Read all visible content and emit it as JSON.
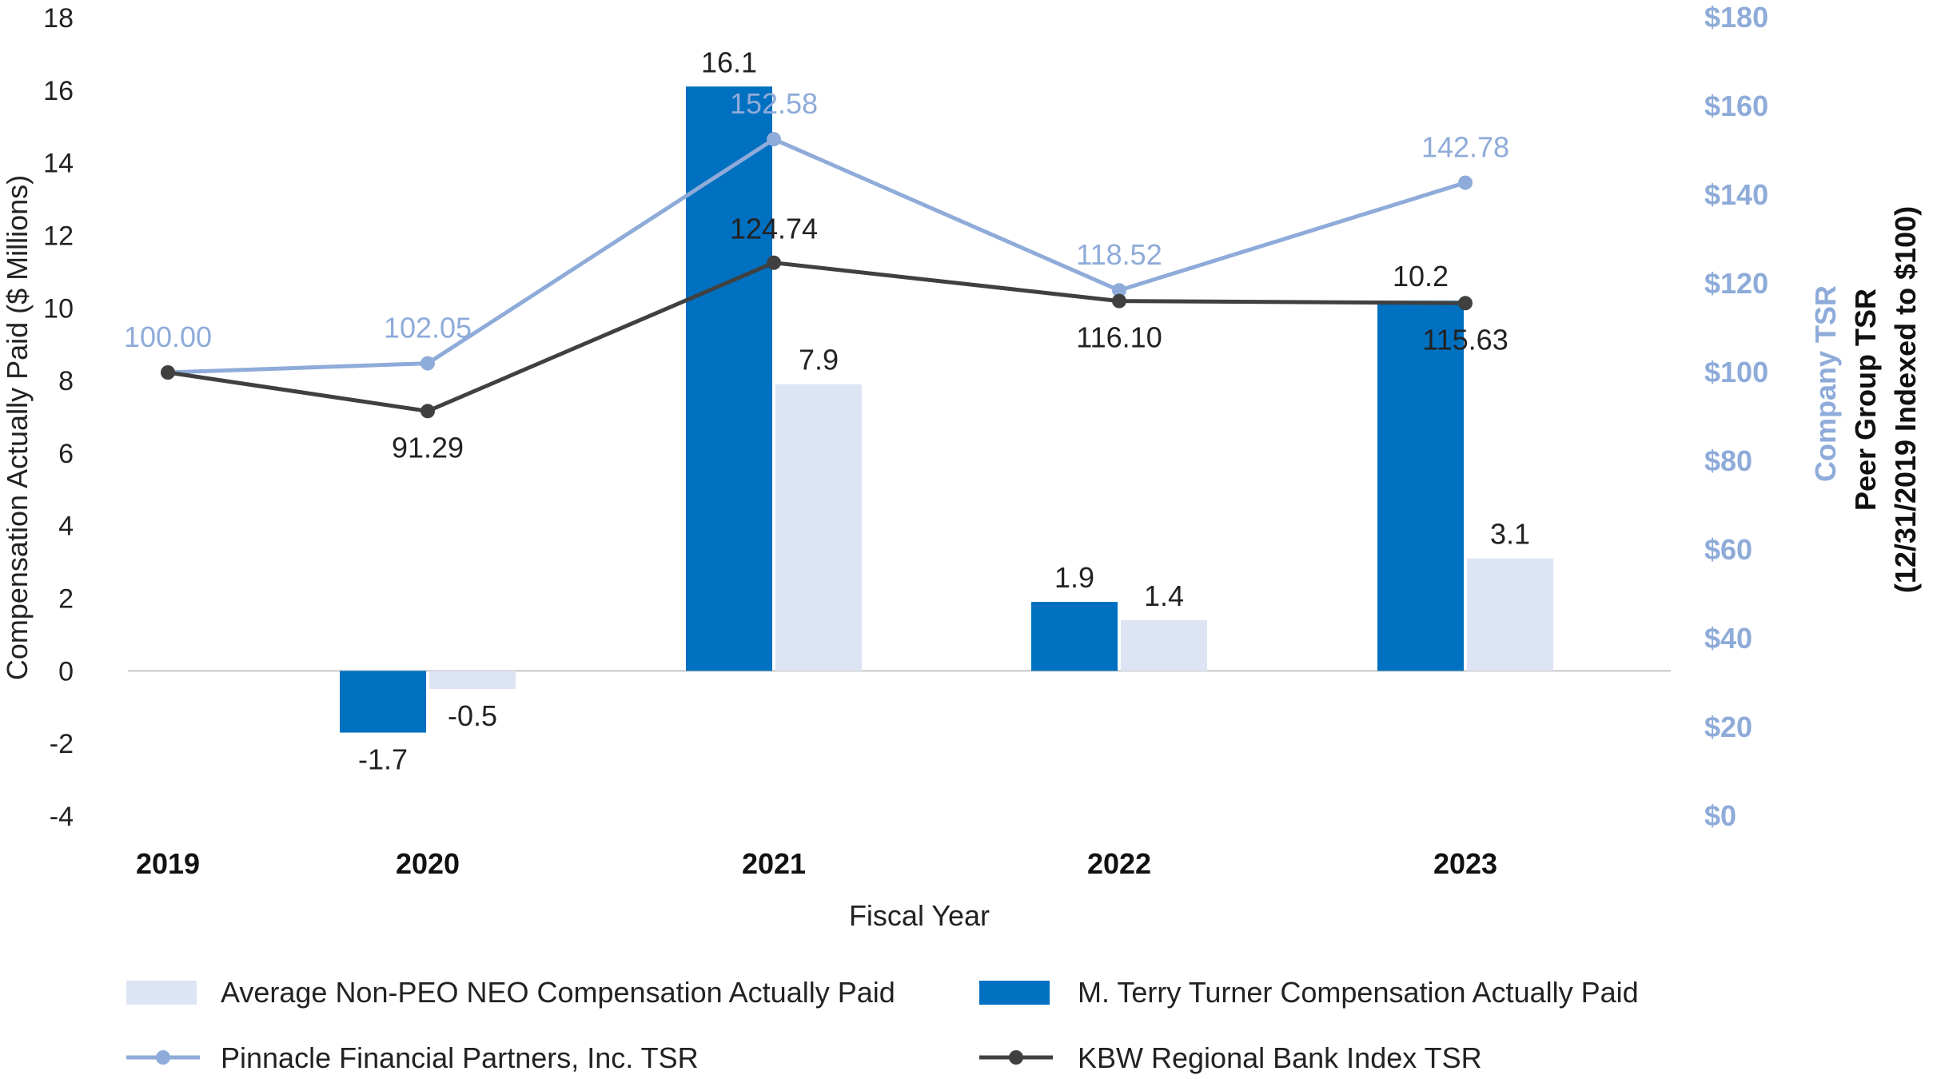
{
  "chart_data": {
    "type": "bar+line",
    "categories": [
      "2019",
      "2020",
      "2021",
      "2022",
      "2023"
    ],
    "xlabel": "Fiscal Year",
    "ylabel": "Compensation Actually Paid ($ Millions)",
    "ylim": [
      -4,
      18
    ],
    "yticks": [
      "-4",
      "-2",
      "0",
      "2",
      "4",
      "6",
      "8",
      "10",
      "12",
      "14",
      "16",
      "18"
    ],
    "y2label_company": "Company TSR",
    "y2label_peer_1": "Peer Group TSR",
    "y2label_peer_2": "(12/31/2019 Indexed to $100)",
    "y2lim": [
      0,
      180
    ],
    "y2ticks": [
      "$0",
      "$20",
      "$40",
      "$60",
      "$80",
      "$100",
      "$120",
      "$140",
      "$160",
      "$180"
    ],
    "bar_series": [
      {
        "name": "M. Terry Turner Compensation Actually Paid",
        "color": "#0070c0",
        "values": [
          null,
          -1.7,
          16.1,
          1.9,
          10.2
        ],
        "labels": [
          "",
          "-1.7",
          "16.1",
          "1.9",
          "10.2"
        ]
      },
      {
        "name": "Average Non-PEO NEO Compensation Actually Paid",
        "color": "#dde5f4",
        "values": [
          null,
          -0.5,
          7.9,
          1.4,
          3.1
        ],
        "labels": [
          "",
          "-0.5",
          "7.9",
          "1.4",
          "3.1"
        ]
      }
    ],
    "line_series": [
      {
        "name": "Pinnacle Financial Partners, Inc. TSR",
        "color": "#8eabd9",
        "values": [
          100.0,
          102.05,
          152.58,
          118.52,
          142.78
        ],
        "labels": [
          "100.00",
          "102.05",
          "152.58",
          "118.52",
          "142.78"
        ]
      },
      {
        "name": "KBW Regional Bank Index TSR",
        "color": "#404040",
        "values": [
          100.0,
          91.29,
          124.74,
          116.1,
          115.63
        ],
        "labels": [
          "",
          "91.29",
          "124.74",
          "116.10",
          "115.63"
        ]
      }
    ],
    "legend": [
      {
        "name": "Average Non-PEO NEO Compensation Actually Paid",
        "kind": "bar",
        "color": "#dde5f4"
      },
      {
        "name": "M. Terry Turner Compensation Actually Paid",
        "kind": "bar",
        "color": "#0070c0"
      },
      {
        "name": "Pinnacle Financial Partners, Inc. TSR",
        "kind": "line",
        "color": "#8eabd9"
      },
      {
        "name": "KBW Regional Bank Index TSR",
        "kind": "line",
        "color": "#404040"
      }
    ]
  }
}
